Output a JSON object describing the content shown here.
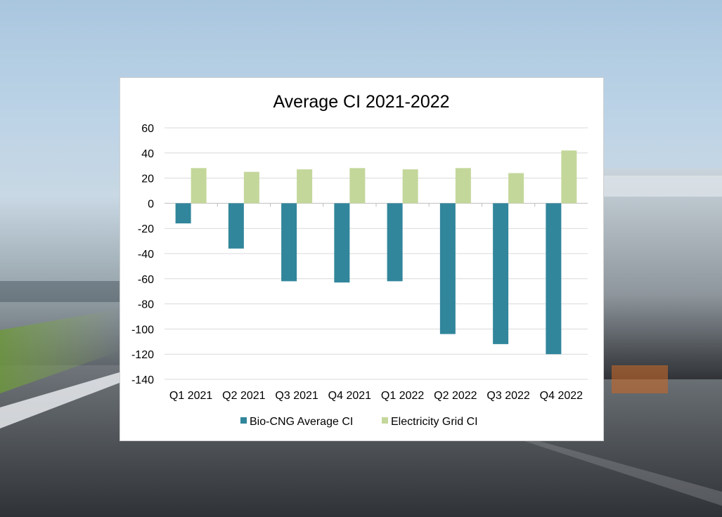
{
  "colors": {
    "bio_cng": "#31869b",
    "electricity": "#c4d79b",
    "grid": "#d9d9d9",
    "axis": "#bfbfbf",
    "text": "#000000"
  },
  "chart_data": {
    "type": "bar",
    "title": "Average CI 2021-2022",
    "xlabel": "",
    "ylabel": "",
    "ylim": [
      -140,
      60
    ],
    "yticks": [
      60,
      40,
      20,
      0,
      -20,
      -40,
      -60,
      -80,
      -100,
      -120,
      -140
    ],
    "categories": [
      "Q1 2021",
      "Q2 2021",
      "Q3 2021",
      "Q4 2021",
      "Q1 2022",
      "Q2 2022",
      "Q3 2022",
      "Q4 2022"
    ],
    "series": [
      {
        "name": "Bio-CNG Average CI",
        "color": "#31869b",
        "values": [
          -16,
          -36,
          -62,
          -63,
          -62,
          -104,
          -112,
          -120
        ]
      },
      {
        "name": "Electricity  Grid CI",
        "color": "#c4d79b",
        "values": [
          28,
          25,
          27,
          28,
          27,
          28,
          24,
          42
        ]
      }
    ],
    "legend": "bottom",
    "grid": true
  }
}
